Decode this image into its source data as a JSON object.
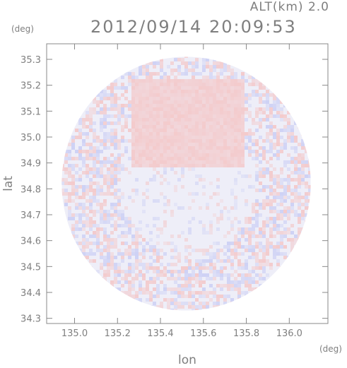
{
  "header": {
    "altitude_label": "ALT(km) 2.0",
    "timestamp": "2012/09/14 20:09:53"
  },
  "axes": {
    "y_unit": "(deg)",
    "x_unit": "(deg)",
    "y_label": "lat",
    "x_label": "lon"
  },
  "chart_data": {
    "type": "heatmap",
    "title": "2012/09/14 20:09:53",
    "subtitle": "ALT(km) 2.0",
    "xlabel": "lon",
    "ylabel": "lat",
    "xlim": [
      134.87,
      136.18
    ],
    "ylim": [
      34.28,
      35.36
    ],
    "x_ticks": [
      135.0,
      135.2,
      135.4,
      135.6,
      135.8,
      136.0
    ],
    "x_tick_labels": [
      "135.0",
      "135.2",
      "135.4",
      "135.6",
      "135.8",
      "136.0"
    ],
    "y_ticks": [
      34.3,
      34.4,
      34.5,
      34.6,
      34.7,
      34.8,
      34.9,
      35.0,
      35.1,
      35.2,
      35.3
    ],
    "y_tick_labels": [
      "34.3",
      "34.4",
      "34.5",
      "34.6",
      "34.7",
      "34.8",
      "34.9",
      "35.0",
      "35.1",
      "35.2",
      "35.3"
    ],
    "radar_center": {
      "lon": 135.52,
      "lat": 34.82
    },
    "radar_range_deg": {
      "lon": 0.58,
      "lat": 0.49
    },
    "grid": false,
    "colors": {
      "positive": "#f4c4c4",
      "negative": "#c8ccf4",
      "neutral": "#eeeef8",
      "frame": "#888888"
    }
  }
}
